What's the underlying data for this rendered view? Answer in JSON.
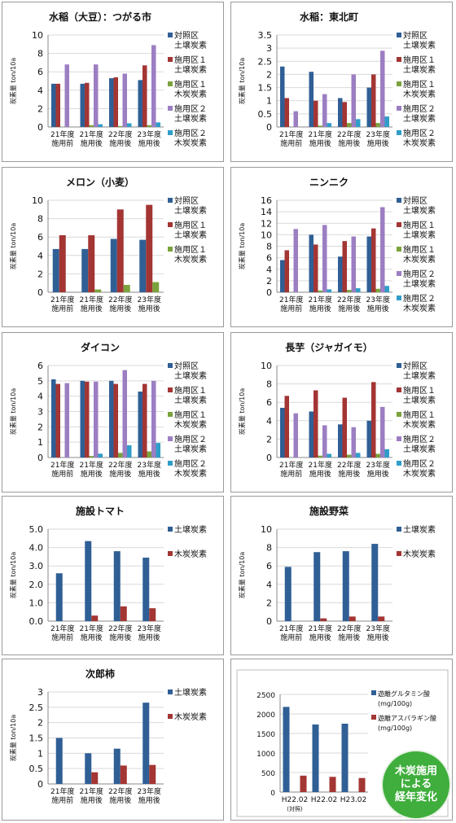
{
  "legend_labels": {
    "ctrl": [
      "対照区",
      "土壌炭素"
    ],
    "t1s": [
      "施用区１",
      "土壌炭素"
    ],
    "t1c": [
      "施用区１",
      "木炭炭素"
    ],
    "t2s": [
      "施用区２",
      "土壌炭素"
    ],
    "t2c": [
      "施用区２",
      "木炭炭素"
    ],
    "soil": [
      "土壌炭素"
    ],
    "char": [
      "木炭炭素"
    ]
  },
  "colors": {
    "ctrl": "#2f5f95",
    "t1s": "#a33533",
    "t1c": "#7aa33d",
    "t2s": "#9c7ec2",
    "t2c": "#2f9ec9",
    "soil": "#2f5f95",
    "char": "#a33533"
  },
  "badge": {
    "lines": [
      "木炭施用",
      "による",
      "経年変化"
    ]
  },
  "chart_data": [
    {
      "type": "bar",
      "title": "水稲（大豆）：つがる市",
      "ylabel": "炭素量 ton/10a",
      "ylim": [
        0,
        10
      ],
      "yticks": [
        0,
        2,
        4,
        6,
        8,
        10
      ],
      "categories": [
        [
          "21年度",
          "施用前"
        ],
        [
          "21年度",
          "施用後"
        ],
        [
          "22年度",
          "施用後"
        ],
        [
          "23年度",
          "施用後"
        ]
      ],
      "series": [
        {
          "key": "ctrl",
          "values": [
            4.7,
            4.7,
            5.3,
            5.1
          ]
        },
        {
          "key": "t1s",
          "values": [
            4.7,
            4.8,
            5.4,
            6.7
          ]
        },
        {
          "key": "t1c",
          "values": [
            0,
            0.2,
            0.1,
            0.2
          ]
        },
        {
          "key": "t2s",
          "values": [
            6.8,
            6.8,
            5.8,
            8.9
          ]
        },
        {
          "key": "t2c",
          "values": [
            0,
            0.3,
            0.4,
            0.5
          ]
        }
      ]
    },
    {
      "type": "bar",
      "title": "水稲：東北町",
      "ylabel": "炭素量 ton/10a",
      "ylim": [
        0,
        3.5
      ],
      "yticks": [
        0,
        0.5,
        1,
        1.5,
        2,
        2.5,
        3,
        3.5
      ],
      "categories": [
        [
          "21年度",
          "施用前"
        ],
        [
          "21年度",
          "施用後"
        ],
        [
          "22年度",
          "施用後"
        ],
        [
          "23年度",
          "施用後"
        ]
      ],
      "series": [
        {
          "key": "ctrl",
          "values": [
            2.3,
            2.1,
            1.1,
            1.5
          ]
        },
        {
          "key": "t1s",
          "values": [
            1.1,
            1.0,
            0.95,
            2.0
          ]
        },
        {
          "key": "t1c",
          "values": [
            0,
            0.05,
            0.15,
            0.15
          ]
        },
        {
          "key": "t2s",
          "values": [
            0.6,
            1.25,
            2.0,
            2.9
          ]
        },
        {
          "key": "t2c",
          "values": [
            0,
            0.15,
            0.3,
            0.4
          ]
        }
      ]
    },
    {
      "type": "bar",
      "title": "メロン（小麦）",
      "ylabel": "炭素量 ton/10a",
      "ylim": [
        0,
        10
      ],
      "yticks": [
        0,
        2,
        4,
        6,
        8,
        10
      ],
      "categories": [
        [
          "21年度",
          "施用前"
        ],
        [
          "21年度",
          "施用後"
        ],
        [
          "22年度",
          "施用後"
        ],
        [
          "23年度",
          "施用後"
        ]
      ],
      "series": [
        {
          "key": "ctrl",
          "values": [
            4.7,
            4.7,
            5.8,
            5.7
          ]
        },
        {
          "key": "t1s",
          "values": [
            6.2,
            6.2,
            9.0,
            9.5
          ]
        },
        {
          "key": "t1c",
          "values": [
            0,
            0.3,
            0.8,
            1.1
          ]
        }
      ]
    },
    {
      "type": "bar",
      "title": "ニンニク",
      "ylabel": "炭素量 ton/10a",
      "ylim": [
        0,
        16
      ],
      "yticks": [
        0,
        2,
        4,
        6,
        8,
        10,
        12,
        14,
        16
      ],
      "categories": [
        [
          "21年度",
          "施用前"
        ],
        [
          "21年度",
          "施用後"
        ],
        [
          "22年度",
          "施用後"
        ],
        [
          "23年度",
          "施用後"
        ]
      ],
      "series": [
        {
          "key": "ctrl",
          "values": [
            5.6,
            10.0,
            6.2,
            9.7
          ]
        },
        {
          "key": "t1s",
          "values": [
            7.3,
            8.3,
            8.9,
            11.1
          ]
        },
        {
          "key": "t1c",
          "values": [
            0,
            0.3,
            0.4,
            0.6
          ]
        },
        {
          "key": "t2s",
          "values": [
            11.0,
            11.7,
            9.7,
            14.8
          ]
        },
        {
          "key": "t2c",
          "values": [
            0,
            0.5,
            0.7,
            1.1
          ]
        }
      ]
    },
    {
      "type": "bar",
      "title": "ダイコン",
      "ylabel": "炭素量 ton/10a",
      "ylim": [
        0,
        6
      ],
      "yticks": [
        0,
        1,
        2,
        3,
        4,
        5,
        6
      ],
      "categories": [
        [
          "21年度",
          "施用前"
        ],
        [
          "21年度",
          "施用後"
        ],
        [
          "22年度",
          "施用後"
        ],
        [
          "23年度",
          "施用後"
        ]
      ],
      "series": [
        {
          "key": "ctrl",
          "values": [
            5.1,
            5.0,
            5.0,
            4.3
          ]
        },
        {
          "key": "t1s",
          "values": [
            4.8,
            4.95,
            4.8,
            4.8
          ]
        },
        {
          "key": "t1c",
          "values": [
            0,
            0.1,
            0.3,
            0.4
          ]
        },
        {
          "key": "t2s",
          "values": [
            4.85,
            4.95,
            5.7,
            5.0
          ]
        },
        {
          "key": "t2c",
          "values": [
            0,
            0.25,
            0.8,
            0.95
          ]
        }
      ]
    },
    {
      "type": "bar",
      "title": "長芋（ジャガイモ）",
      "ylabel": "炭素量 ton/10a",
      "ylim": [
        0,
        10
      ],
      "yticks": [
        0,
        2,
        4,
        6,
        8,
        10
      ],
      "categories": [
        [
          "21年度",
          "施用前"
        ],
        [
          "21年度",
          "施用後"
        ],
        [
          "22年度",
          "施用後"
        ],
        [
          "23年度",
          "施用後"
        ]
      ],
      "series": [
        {
          "key": "ctrl",
          "values": [
            5.4,
            5.0,
            3.6,
            4.0
          ]
        },
        {
          "key": "t1s",
          "values": [
            6.7,
            7.3,
            6.5,
            8.2
          ]
        },
        {
          "key": "t1c",
          "values": [
            0,
            0.2,
            0.3,
            0.4
          ]
        },
        {
          "key": "t2s",
          "values": [
            4.8,
            3.5,
            3.3,
            5.5
          ]
        },
        {
          "key": "t2c",
          "values": [
            0,
            0.4,
            0.5,
            0.9
          ]
        }
      ]
    },
    {
      "type": "bar",
      "title": "施設トマト",
      "ylabel": "炭素量 ton/10a",
      "ylim": [
        0,
        5
      ],
      "yticks": [
        "0.0",
        "1.0",
        "2.0",
        "3.0",
        "4.0",
        "5.0"
      ],
      "categories": [
        [
          "21年度",
          "施用前"
        ],
        [
          "21年度",
          "施用後"
        ],
        [
          "22年度",
          "施用後"
        ],
        [
          "23年度",
          "施用後"
        ]
      ],
      "series": [
        {
          "key": "soil",
          "values": [
            2.6,
            4.35,
            3.8,
            3.45
          ]
        },
        {
          "key": "char",
          "values": [
            0,
            0.3,
            0.8,
            0.7
          ]
        }
      ]
    },
    {
      "type": "bar",
      "title": "施設野菜",
      "ylabel": "炭素量 ton/10a",
      "ylim": [
        0,
        10
      ],
      "yticks": [
        0,
        2,
        4,
        6,
        8,
        10
      ],
      "categories": [
        [
          "21年度",
          "施用前"
        ],
        [
          "21年度",
          "施用後"
        ],
        [
          "22年度",
          "施用後"
        ],
        [
          "23年度",
          "施用後"
        ]
      ],
      "series": [
        {
          "key": "soil",
          "values": [
            5.9,
            7.5,
            7.6,
            8.4
          ]
        },
        {
          "key": "char",
          "values": [
            0,
            0.3,
            0.5,
            0.5
          ]
        }
      ]
    },
    {
      "type": "bar",
      "title": "次郎柿",
      "ylabel": "炭素量 ton/10a",
      "ylim": [
        0,
        3
      ],
      "yticks": [
        0,
        0.5,
        1,
        1.5,
        2,
        2.5,
        3
      ],
      "categories": [
        [
          "21年度",
          "施用前"
        ],
        [
          "21年度",
          "施用後"
        ],
        [
          "22年度",
          "施用後"
        ],
        [
          "23年度",
          "施用後"
        ]
      ],
      "series": [
        {
          "key": "soil",
          "values": [
            1.5,
            1.0,
            1.15,
            2.65
          ]
        },
        {
          "key": "char",
          "values": [
            0,
            0.38,
            0.6,
            0.62
          ]
        }
      ]
    },
    {
      "type": "bar",
      "title": "",
      "ylabel": "",
      "ylim": [
        0,
        2500
      ],
      "yticks": [
        0,
        500,
        1000,
        1500,
        2000,
        2500
      ],
      "categories": [
        [
          "H22.02",
          "(対照)"
        ],
        [
          "H22.02"
        ],
        [
          "H23.02"
        ]
      ],
      "series": [
        {
          "name": [
            "遊離グルタミン酸",
            "(mg/100g)"
          ],
          "color": "#2f5f95",
          "values": [
            2180,
            1730,
            1750
          ]
        },
        {
          "name": [
            "遊離アスパラギン酸",
            "(mg/100g)"
          ],
          "color": "#a33533",
          "values": [
            420,
            390,
            360
          ]
        }
      ]
    }
  ]
}
